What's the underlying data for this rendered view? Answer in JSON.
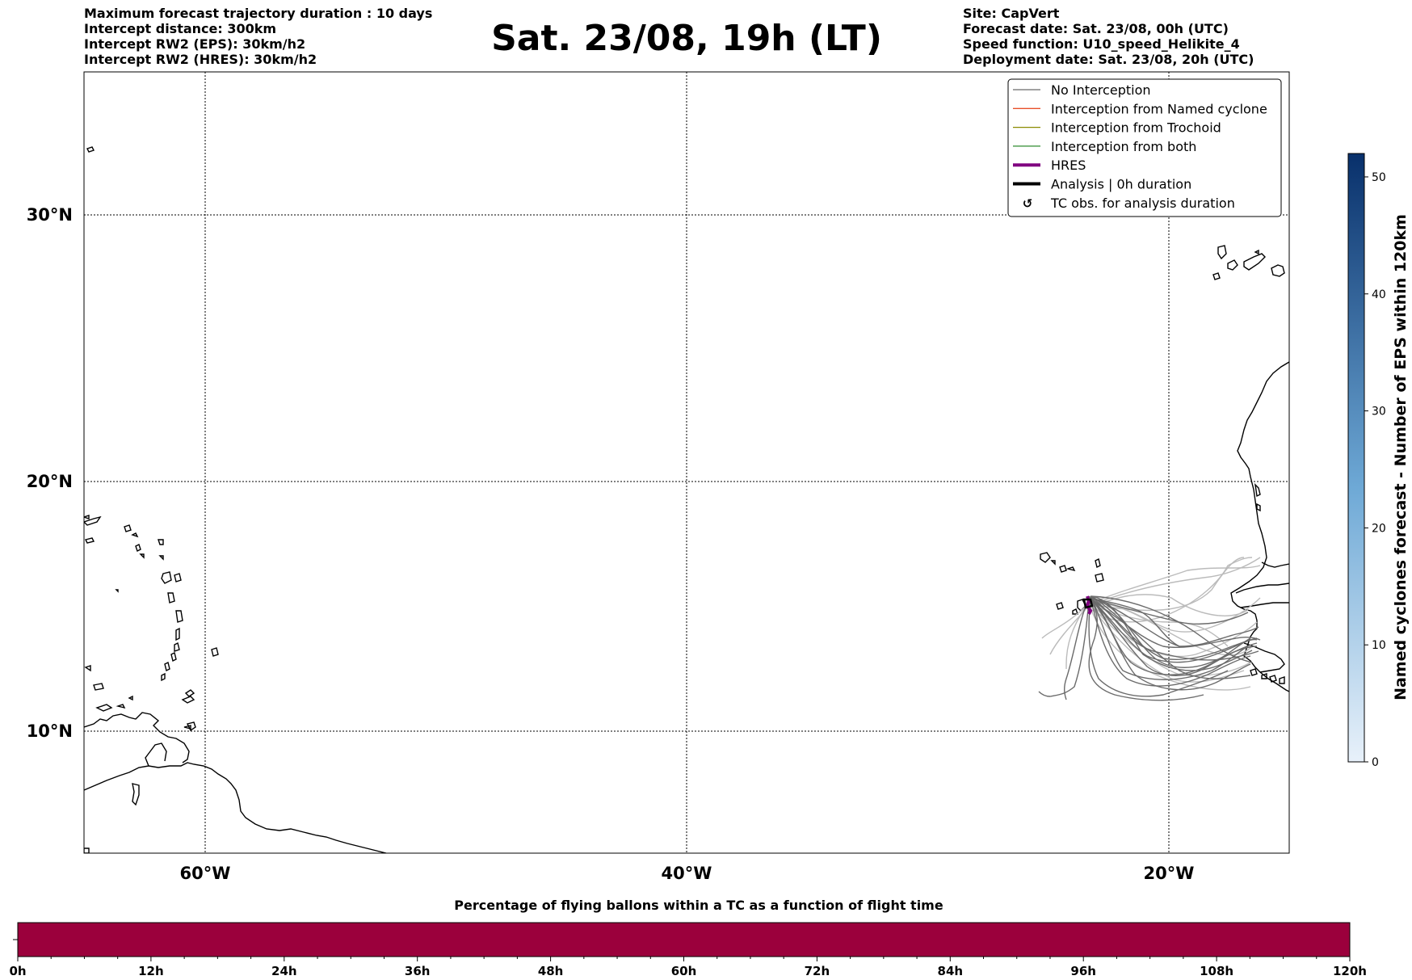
{
  "header": {
    "left": {
      "line1": "Maximum forecast trajectory duration : 10 days",
      "line2": "Intercept distance: 300km",
      "line3": "Intercept RW2 (EPS):  30km/h2",
      "line4": "Intercept RW2 (HRES): 30km/h2"
    },
    "title": "Sat. 23/08, 19h (LT)",
    "right": {
      "line1": "Site: CapVert",
      "line2": "Forecast date: Sat. 23/08, 00h (UTC)",
      "line3": "Speed function: U10_speed_Helikite_4",
      "line4": "Deployment date: Sat. 23/08, 20h (UTC)"
    }
  },
  "map": {
    "lat_labels": [
      "30°N",
      "20°N",
      "10°N"
    ],
    "lon_labels": [
      "60°W",
      "40°W",
      "20°W"
    ],
    "extent": {
      "lon_min": -65,
      "lon_max": -15,
      "lat_min": 5.4,
      "lat_max": 34.8
    },
    "legend": [
      {
        "label": "No Interception",
        "color": "#696969",
        "icon": "thin-line"
      },
      {
        "label": "Interception from Named cyclone",
        "color": "#e8502a",
        "icon": "thin-line"
      },
      {
        "label": "Interception from Trochoid",
        "color": "#8b8b00",
        "icon": "thin-line"
      },
      {
        "label": "Interception from both",
        "color": "#2e8b2e",
        "icon": "thin-line"
      },
      {
        "label": "HRES",
        "color": "#800080",
        "icon": "thick-line"
      },
      {
        "label": "Analysis | 0h duration",
        "color": "#000000",
        "icon": "thick-line"
      },
      {
        "label": "TC obs. for analysis duration",
        "color": "#000000",
        "icon": "cyclone-icon"
      }
    ],
    "site": {
      "name": "CapVert",
      "lon": -23.5,
      "lat": 15.0
    },
    "colors": {
      "hres": "#800080",
      "eps_dark": "#666666",
      "eps_light": "#bbbbbb"
    }
  },
  "colorbar": {
    "label": "Named cyclones forecast - Number of EPS within 120km",
    "ticks": [
      "0",
      "10",
      "20",
      "30",
      "40",
      "50"
    ],
    "max": 52,
    "color_low": "#e8f1fa",
    "color_high": "#08306b"
  },
  "timebar": {
    "title": "Percentage of flying ballons within a TC as a function of flight time",
    "ticks": [
      "0h",
      "12h",
      "24h",
      "36h",
      "48h",
      "60h",
      "72h",
      "84h",
      "96h",
      "108h",
      "120h"
    ],
    "fill_color": "#9b003c"
  }
}
